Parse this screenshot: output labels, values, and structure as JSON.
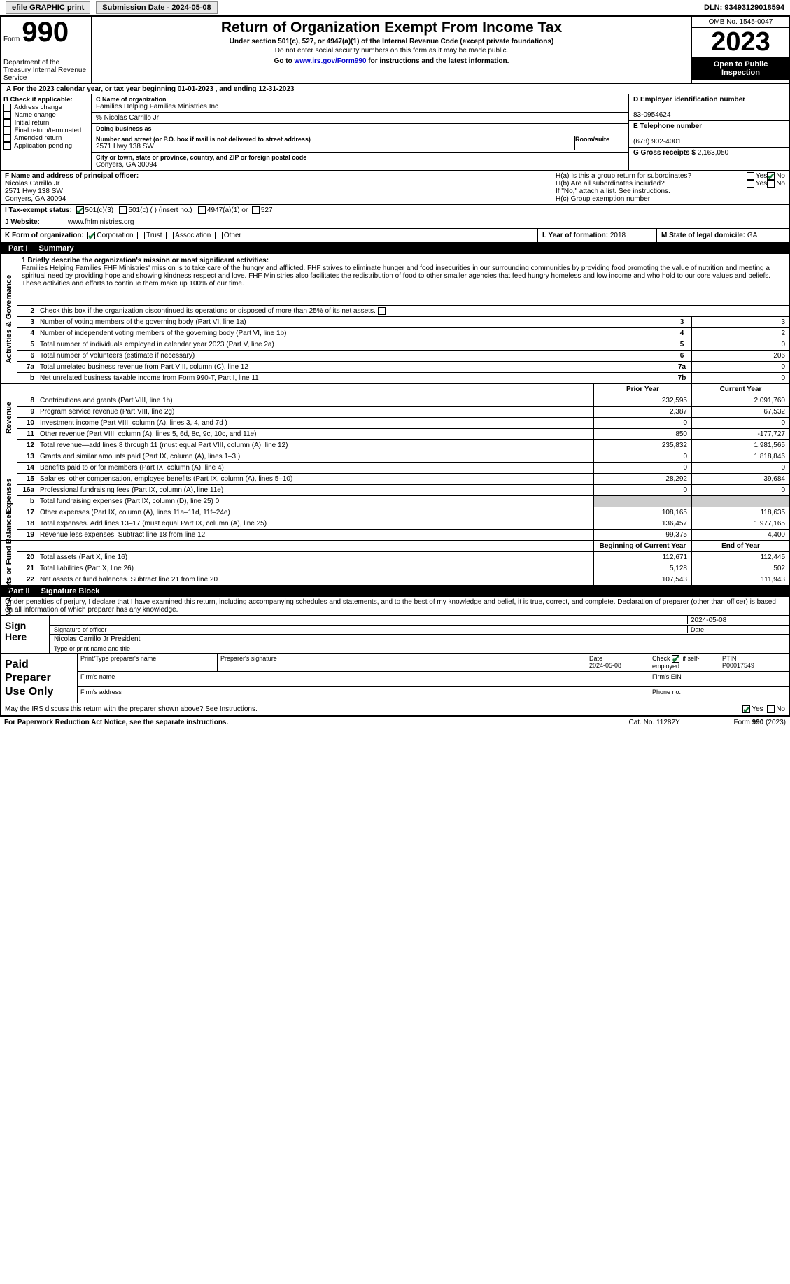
{
  "topbar": {
    "efile": "efile GRAPHIC print",
    "sub_label": "Submission Date - 2024-05-08",
    "dln": "DLN: 93493129018594"
  },
  "header": {
    "form_word": "Form",
    "form_num": "990",
    "dept": "Department of the Treasury Internal Revenue Service",
    "title": "Return of Organization Exempt From Income Tax",
    "sub": "Under section 501(c), 527, or 4947(a)(1) of the Internal Revenue Code (except private foundations)",
    "note": "Do not enter social security numbers on this form as it may be made public.",
    "link_pre": "Go to ",
    "link_url": "www.irs.gov/Form990",
    "link_post": " for instructions and the latest information.",
    "omb": "OMB No. 1545-0047",
    "year": "2023",
    "open1": "Open to Public",
    "open2": "Inspection"
  },
  "period": "A For the 2023 calendar year, or tax year beginning 01-01-2023   , and ending 12-31-2023",
  "boxB": {
    "title": "B Check if applicable:",
    "opts": [
      "Address change",
      "Name change",
      "Initial return",
      "Final return/terminated",
      "Amended return",
      "Application pending"
    ]
  },
  "boxC": {
    "name_lbl": "C Name of organization",
    "name": "Families Helping Families Ministries Inc",
    "care": "% Nicolas Carrillo Jr",
    "dba_lbl": "Doing business as",
    "addr_lbl": "Number and street (or P.O. box if mail is not delivered to street address)",
    "room_lbl": "Room/suite",
    "addr": "2571 Hwy 138 SW",
    "city_lbl": "City or town, state or province, country, and ZIP or foreign postal code",
    "city": "Conyers, GA  30094"
  },
  "boxD": {
    "ein_lbl": "D Employer identification number",
    "ein": "83-0954624",
    "tel_lbl": "E Telephone number",
    "tel": "(678) 902-4001",
    "gross_lbl": "G Gross receipts $",
    "gross": "2,163,050"
  },
  "boxF": {
    "lbl": "F  Name and address of principal officer:",
    "name": "Nicolas Carrillo Jr",
    "addr1": "2571 Hwy 138 SW",
    "addr2": "Conyers, GA  30094"
  },
  "boxH": {
    "ha": "H(a)  Is this a group return for subordinates?",
    "hb": "H(b)  Are all subordinates included?",
    "hnote": "If \"No,\" attach a list. See instructions.",
    "hc": "H(c)  Group exemption number"
  },
  "rowI": {
    "lbl": "I   Tax-exempt status:",
    "o1": "501(c)(3)",
    "o2": "501(c) (  ) (insert no.)",
    "o3": "4947(a)(1) or",
    "o4": "527"
  },
  "rowJ": {
    "lbl": "J   Website:",
    "val": "www.fhfministries.org"
  },
  "rowK": {
    "lbl": "K Form of organization:",
    "o1": "Corporation",
    "o2": "Trust",
    "o3": "Association",
    "o4": "Other",
    "l_lbl": "L Year of formation:",
    "l_val": "2018",
    "m_lbl": "M State of legal domicile:",
    "m_val": "GA"
  },
  "part1": {
    "num": "Part I",
    "title": "Summary"
  },
  "mission": {
    "lbl": "1  Briefly describe the organization's mission or most significant activities:",
    "text": "Families Helping Families FHF Ministries' mission is to take care of the hungry and afflicted. FHF strives to eliminate hunger and food insecurities in our surrounding communities by providing food promoting the value of nutrition and meeting a spiritual need by providing hope and showing kindness respect and love. FHF Ministries also facilitates the redistribution of food to other smaller agencies that feed hungry homeless and low income and who hold to our core values and beliefs. These activities and efforts to continue them make up 100% of our time."
  },
  "line2": "Check this box         if the organization discontinued its operations or disposed of more than 25% of its net assets.",
  "gov_rows": [
    {
      "n": "3",
      "d": "Number of voting members of the governing body (Part VI, line 1a)",
      "box": "3",
      "v": "3"
    },
    {
      "n": "4",
      "d": "Number of independent voting members of the governing body (Part VI, line 1b)",
      "box": "4",
      "v": "2"
    },
    {
      "n": "5",
      "d": "Total number of individuals employed in calendar year 2023 (Part V, line 2a)",
      "box": "5",
      "v": "0"
    },
    {
      "n": "6",
      "d": "Total number of volunteers (estimate if necessary)",
      "box": "6",
      "v": "206"
    },
    {
      "n": "7a",
      "d": "Total unrelated business revenue from Part VIII, column (C), line 12",
      "box": "7a",
      "v": "0"
    },
    {
      "n": "b",
      "d": "Net unrelated business taxable income from Form 990-T, Part I, line 11",
      "box": "7b",
      "v": "0"
    }
  ],
  "col_hdrs": {
    "py": "Prior Year",
    "cy": "Current Year"
  },
  "rev_rows": [
    {
      "n": "8",
      "d": "Contributions and grants (Part VIII, line 1h)",
      "py": "232,595",
      "cy": "2,091,760"
    },
    {
      "n": "9",
      "d": "Program service revenue (Part VIII, line 2g)",
      "py": "2,387",
      "cy": "67,532"
    },
    {
      "n": "10",
      "d": "Investment income (Part VIII, column (A), lines 3, 4, and 7d )",
      "py": "0",
      "cy": "0"
    },
    {
      "n": "11",
      "d": "Other revenue (Part VIII, column (A), lines 5, 6d, 8c, 9c, 10c, and 11e)",
      "py": "850",
      "cy": "-177,727"
    },
    {
      "n": "12",
      "d": "Total revenue—add lines 8 through 11 (must equal Part VIII, column (A), line 12)",
      "py": "235,832",
      "cy": "1,981,565"
    }
  ],
  "exp_rows": [
    {
      "n": "13",
      "d": "Grants and similar amounts paid (Part IX, column (A), lines 1–3 )",
      "py": "0",
      "cy": "1,818,846"
    },
    {
      "n": "14",
      "d": "Benefits paid to or for members (Part IX, column (A), line 4)",
      "py": "0",
      "cy": "0"
    },
    {
      "n": "15",
      "d": "Salaries, other compensation, employee benefits (Part IX, column (A), lines 5–10)",
      "py": "28,292",
      "cy": "39,684"
    },
    {
      "n": "16a",
      "d": "Professional fundraising fees (Part IX, column (A), line 11e)",
      "py": "0",
      "cy": "0"
    },
    {
      "n": "b",
      "d": "Total fundraising expenses (Part IX, column (D), line 25) 0",
      "py": "",
      "cy": "",
      "shaded": true
    },
    {
      "n": "17",
      "d": "Other expenses (Part IX, column (A), lines 11a–11d, 11f–24e)",
      "py": "108,165",
      "cy": "118,635"
    },
    {
      "n": "18",
      "d": "Total expenses. Add lines 13–17 (must equal Part IX, column (A), line 25)",
      "py": "136,457",
      "cy": "1,977,165"
    },
    {
      "n": "19",
      "d": "Revenue less expenses. Subtract line 18 from line 12",
      "py": "99,375",
      "cy": "4,400"
    }
  ],
  "na_hdrs": {
    "by": "Beginning of Current Year",
    "ey": "End of Year"
  },
  "na_rows": [
    {
      "n": "20",
      "d": "Total assets (Part X, line 16)",
      "py": "112,671",
      "cy": "112,445"
    },
    {
      "n": "21",
      "d": "Total liabilities (Part X, line 26)",
      "py": "5,128",
      "cy": "502"
    },
    {
      "n": "22",
      "d": "Net assets or fund balances. Subtract line 21 from line 20",
      "py": "107,543",
      "cy": "111,943"
    }
  ],
  "part2": {
    "num": "Part II",
    "title": "Signature Block"
  },
  "sig": {
    "intro": "Under penalties of perjury, I declare that I have examined this return, including accompanying schedules and statements, and to the best of my knowledge and belief, it is true, correct, and complete. Declaration of preparer (other than officer) is based on all information of which preparer has any knowledge.",
    "here1": "Sign",
    "here2": "Here",
    "siglbl": "Signature of officer",
    "date": "2024-05-08",
    "datelbl": "Date",
    "name": "Nicolas Carrillo Jr  President",
    "namelbl": "Type or print name and title"
  },
  "prep": {
    "title1": "Paid",
    "title2": "Preparer",
    "title3": "Use Only",
    "h1": "Print/Type preparer's name",
    "h2": "Preparer's signature",
    "h3": "Date",
    "h3v": "2024-05-08",
    "h4": "Check         if self-employed",
    "h5": "PTIN",
    "h5v": "P00017549",
    "firm": "Firm's name",
    "ein": "Firm's EIN",
    "addr": "Firm's address",
    "phone": "Phone no."
  },
  "mayirs": {
    "q": "May the IRS discuss this return with the preparer shown above? See Instructions.",
    "yes": "Yes",
    "no": "No"
  },
  "footer": {
    "l": "For Paperwork Reduction Act Notice, see the separate instructions.",
    "c": "Cat. No. 11282Y",
    "r": "Form 990 (2023)"
  },
  "side_labels": {
    "gov": "Activities & Governance",
    "rev": "Revenue",
    "exp": "Expenses",
    "na": "Net Assets or Fund Balances"
  },
  "yesno": {
    "yes": "Yes",
    "no": "No"
  }
}
